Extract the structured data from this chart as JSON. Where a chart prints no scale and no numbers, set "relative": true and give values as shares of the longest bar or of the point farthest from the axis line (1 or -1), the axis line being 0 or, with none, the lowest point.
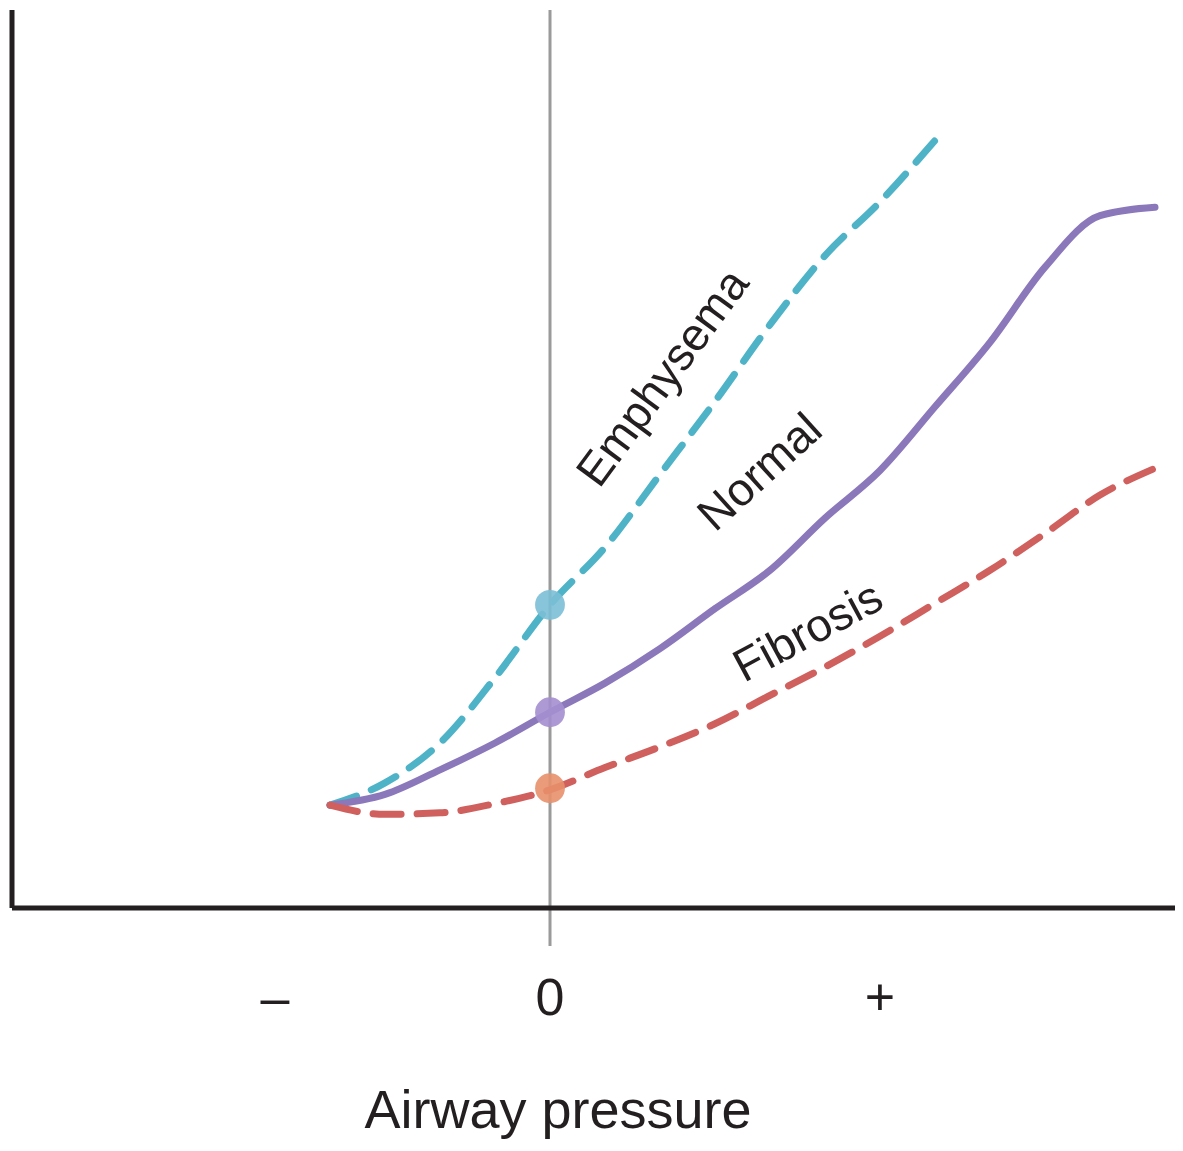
{
  "chart_data": {
    "type": "line",
    "relative": true,
    "xlabel": "Airway pressure",
    "categories": [
      "–",
      null,
      null,
      null,
      null,
      "0",
      null,
      null,
      null,
      null,
      null,
      "+",
      null,
      null,
      null,
      null,
      null
    ],
    "tick_labels": "x",
    "marker": "none",
    "ref_lines": [
      {
        "axis": "x",
        "value": "0",
        "color": "#9a9a9a"
      }
    ],
    "series": [
      {
        "name": "Emphysema",
        "color": "#4fb3c8",
        "line_style": "dashed",
        "values": [
          null,
          0.134,
          0.163,
          0.215,
          0.3,
          0.395,
          0.47,
          0.565,
          0.66,
          0.76,
          0.85,
          0.92,
          1,
          null,
          null,
          null,
          null
        ]
      },
      {
        "name": "Normal",
        "color": "#8b78bb",
        "line_style": "solid",
        "values": [
          null,
          0.134,
          0.148,
          0.18,
          0.215,
          0.255,
          0.293,
          0.338,
          0.39,
          0.44,
          0.508,
          0.57,
          0.653,
          0.737,
          0.835,
          0.902,
          0.913
        ]
      },
      {
        "name": "Fibrosis",
        "color": "#d0605e",
        "line_style": "dashed",
        "values": [
          null,
          0.134,
          0.122,
          0.124,
          0.136,
          0.154,
          0.183,
          0.21,
          0.24,
          0.277,
          0.314,
          0.354,
          0.397,
          0.44,
          0.488,
          0.538,
          0.573
        ]
      },
      {
        "type": "scatter",
        "marker": "circle",
        "x": [
          "0",
          "0",
          "0"
        ],
        "values": [
          0.395,
          0.255,
          0.156
        ],
        "colors": [
          "#7bbfd6",
          "#a48fd0",
          "#e8906a"
        ]
      }
    ]
  }
}
